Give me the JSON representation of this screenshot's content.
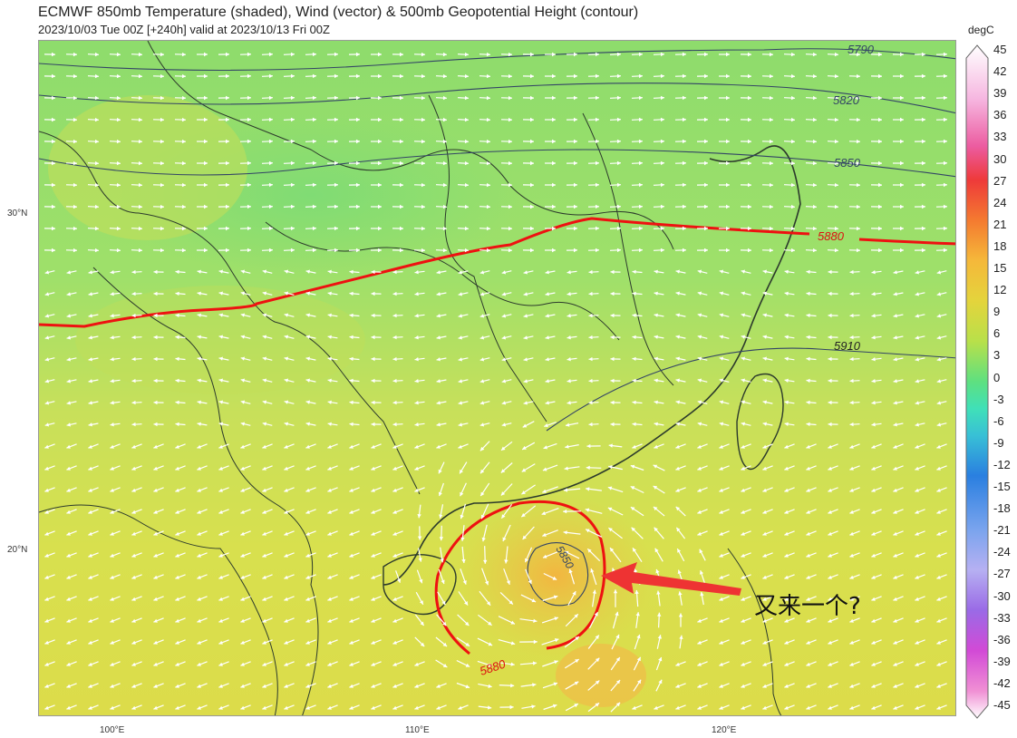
{
  "title": "ECMWF 850mb Temperature (shaded), Wind (vector) & 500mb Geopotential Height (contour)",
  "subtitle": "2023/10/03 Tue 00Z [+240h] valid at 2023/10/13 Fri 00Z",
  "axes": {
    "lat_labels": [
      "30°N",
      "20°N"
    ],
    "lon_labels": [
      "100°E",
      "110°E",
      "120°E"
    ]
  },
  "contours": {
    "c5790": "5790",
    "c5820": "5820",
    "c5850": "5850",
    "c5880": "5880",
    "c5910": "5910",
    "c5880_low": "5880",
    "c5850_low": "5850"
  },
  "colorbar": {
    "unit": "degC",
    "ticks": [
      "45",
      "42",
      "39",
      "36",
      "33",
      "30",
      "27",
      "24",
      "21",
      "18",
      "15",
      "12",
      "9",
      "6",
      "3",
      "0",
      "-3",
      "-6",
      "-9",
      "-12",
      "-15",
      "-18",
      "-21",
      "-24",
      "-27",
      "-30",
      "-33",
      "-36",
      "-39",
      "-42",
      "-45"
    ]
  },
  "annotation": {
    "text": "又来一个?",
    "color": "#ee3333"
  },
  "colors": {
    "contour_5880": "#ee1111",
    "contour_other": "#334466",
    "wind": "#ffffff"
  }
}
